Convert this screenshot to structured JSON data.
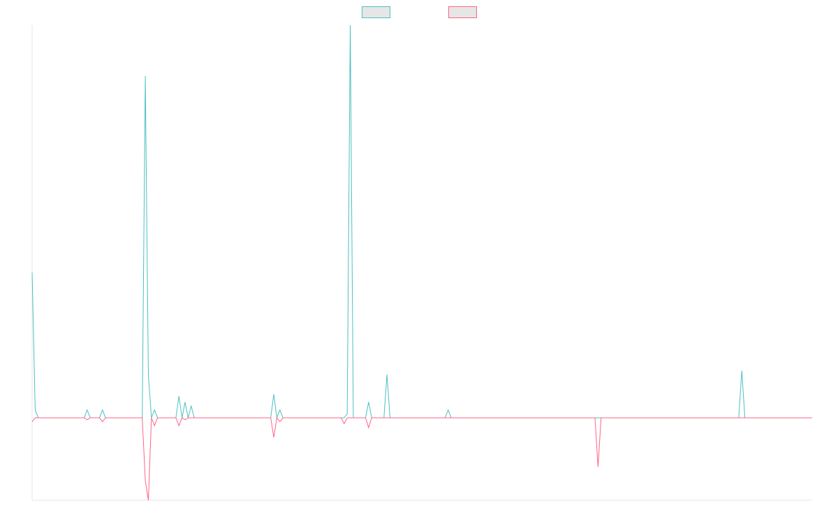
{
  "chart_data": {
    "type": "line",
    "legend": "top",
    "ylim": [
      -21,
      100
    ],
    "series": [
      {
        "color": "#4bc0c0",
        "values": [
          37,
          2,
          0,
          0,
          0,
          0,
          0,
          0,
          0,
          0,
          0,
          0,
          0,
          0,
          0,
          0,
          0,
          0,
          2,
          0,
          0,
          0,
          0,
          2,
          0,
          0,
          0,
          0,
          0,
          0,
          0,
          0,
          0,
          0,
          0,
          0,
          0,
          87,
          11,
          0,
          2,
          0,
          0,
          0,
          0,
          0,
          0,
          0,
          5.5,
          0,
          4,
          0,
          3,
          0,
          0,
          0,
          0,
          0,
          0,
          0,
          0,
          0,
          0,
          0,
          0,
          0,
          0,
          0,
          0,
          0,
          0,
          0,
          0,
          0,
          0,
          0,
          0,
          0,
          0,
          6,
          0,
          2,
          0,
          0,
          0,
          0,
          0,
          0,
          0,
          0,
          0,
          0,
          0,
          0,
          0,
          0,
          0,
          0,
          0,
          0,
          0,
          0,
          0,
          1,
          100,
          0,
          0,
          0,
          0,
          0,
          4,
          0,
          0,
          0,
          0,
          0,
          11,
          0,
          0,
          0,
          0,
          0,
          0,
          0,
          0,
          0,
          0,
          0,
          0,
          0,
          0,
          0,
          0,
          0,
          0,
          0,
          2,
          0,
          0,
          0,
          0,
          0,
          0,
          0,
          0,
          0,
          0,
          0,
          0,
          0,
          0,
          0,
          0,
          0,
          0,
          0,
          0,
          0,
          0,
          0,
          0,
          0,
          0,
          0,
          0,
          0,
          0,
          0,
          0,
          0,
          0,
          0,
          0,
          0,
          0,
          0,
          0,
          0,
          0,
          0,
          0,
          0,
          0,
          0,
          0,
          0,
          0,
          0,
          0,
          0,
          0,
          0,
          0,
          0,
          0,
          0,
          0,
          0,
          0,
          0,
          0,
          0,
          0,
          0,
          0,
          0,
          0,
          0,
          0,
          0,
          0,
          0,
          0,
          0,
          0,
          0,
          0,
          0,
          0,
          0,
          0,
          0,
          0,
          0,
          0,
          0,
          0,
          0,
          0,
          0,
          0,
          0,
          12,
          0,
          0,
          0,
          0,
          0,
          0,
          0,
          0,
          0,
          0,
          0,
          0,
          0,
          0,
          0,
          0,
          0,
          0,
          0,
          0,
          0,
          0,
          0
        ]
      },
      {
        "color": "#ff6384",
        "values": [
          -1,
          0,
          0,
          0,
          0,
          0,
          0,
          0,
          0,
          0,
          0,
          0,
          0,
          0,
          0,
          0,
          0,
          0,
          -0.5,
          0,
          0,
          0,
          0,
          -1,
          0,
          0,
          0,
          0,
          0,
          0,
          0,
          0,
          0,
          0,
          0,
          0,
          0,
          -16,
          -21,
          0,
          -2,
          0,
          0,
          0,
          0,
          0,
          0,
          0,
          -2,
          0,
          -0.5,
          0,
          0,
          0,
          0,
          0,
          0,
          0,
          0,
          0,
          0,
          0,
          0,
          0,
          0,
          0,
          0,
          0,
          0,
          0,
          0,
          0,
          0,
          0,
          0,
          0,
          0,
          0,
          0,
          -5,
          0,
          -1,
          0,
          0,
          0,
          0,
          0,
          0,
          0,
          0,
          0,
          0,
          0,
          0,
          0,
          0,
          0,
          0,
          0,
          0,
          0,
          0,
          -1.5,
          0,
          0,
          0,
          0,
          0,
          0,
          0,
          -2.5,
          0,
          0,
          0,
          0,
          0,
          0,
          0,
          0,
          0,
          0,
          0,
          0,
          0,
          0,
          0,
          0,
          0,
          0,
          0,
          0,
          0,
          0,
          0,
          0,
          0,
          0,
          0,
          0,
          0,
          0,
          0,
          0,
          0,
          0,
          0,
          0,
          0,
          0,
          0,
          0,
          0,
          0,
          0,
          0,
          0,
          0,
          0,
          0,
          0,
          0,
          0,
          0,
          0,
          0,
          0,
          0,
          0,
          0,
          0,
          0,
          0,
          0,
          0,
          0,
          0,
          0,
          0,
          0,
          0,
          0,
          0,
          0,
          0,
          0,
          -12.5,
          0,
          0,
          0,
          0,
          0,
          0,
          0,
          0,
          0,
          0,
          0,
          0,
          0,
          0,
          0,
          0,
          0,
          0,
          0,
          0,
          0,
          0,
          0,
          0,
          0,
          0,
          0,
          0,
          0,
          0,
          0,
          0,
          0,
          0,
          0,
          0,
          0,
          0,
          0,
          0,
          0,
          0,
          0,
          0,
          0,
          0,
          0,
          0,
          0,
          0,
          0,
          0,
          0,
          0,
          0,
          0,
          0,
          0,
          0,
          0,
          0,
          0,
          0,
          0,
          0,
          0,
          0,
          0,
          0,
          0
        ]
      }
    ]
  }
}
